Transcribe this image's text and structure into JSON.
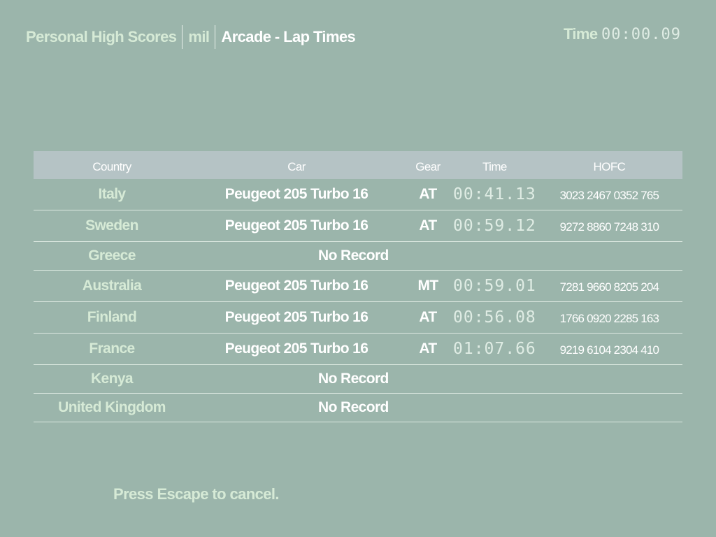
{
  "header": {
    "section": "Personal High Scores",
    "user": "mil",
    "mode": "Arcade - Lap Times",
    "time_label": "Time",
    "time_value": "00:00.09"
  },
  "columns": [
    "Country",
    "Car",
    "Gear",
    "Time",
    "HOFC"
  ],
  "rows": [
    {
      "country": "Italy",
      "car": "Peugeot 205 Turbo 16",
      "gear": "AT",
      "time": "00:41.13",
      "hofc": "3023 2467 0352 765"
    },
    {
      "country": "Sweden",
      "car": "Peugeot 205 Turbo 16",
      "gear": "AT",
      "time": "00:59.12",
      "hofc": "9272 8860 7248 310"
    },
    {
      "country": "Greece",
      "no_record": "No Record"
    },
    {
      "country": "Australia",
      "car": "Peugeot 205 Turbo 16",
      "gear": "MT",
      "time": "00:59.01",
      "hofc": "7281 9660 8205 204"
    },
    {
      "country": "Finland",
      "car": "Peugeot 205 Turbo 16",
      "gear": "AT",
      "time": "00:56.08",
      "hofc": "1766 0920 2285 163"
    },
    {
      "country": "France",
      "car": "Peugeot 205 Turbo 16",
      "gear": "AT",
      "time": "01:07.66",
      "hofc": "9219 6104 2304 410"
    },
    {
      "country": "Kenya",
      "no_record": "No Record"
    },
    {
      "country": "United Kingdom",
      "no_record": "No Record"
    }
  ],
  "footer": {
    "hint": "Press Escape to cancel."
  }
}
